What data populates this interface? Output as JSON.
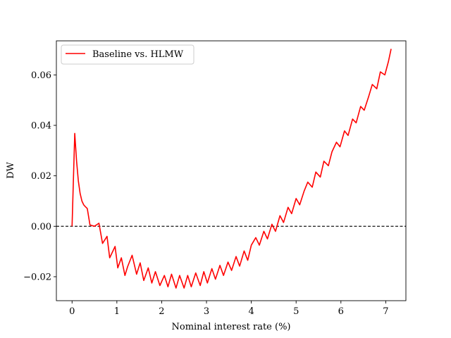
{
  "chart_data": {
    "type": "line",
    "title": "",
    "xlabel": "Nominal interest rate (%)",
    "ylabel": "DW",
    "xlim": [
      -0.35,
      7.45
    ],
    "ylim": [
      -0.0295,
      0.0735
    ],
    "xticks": [
      0,
      1,
      2,
      3,
      4,
      5,
      6,
      7
    ],
    "xtick_labels": [
      "0",
      "1",
      "2",
      "3",
      "4",
      "5",
      "6",
      "7"
    ],
    "yticks": [
      -0.02,
      0.0,
      0.02,
      0.04,
      0.06
    ],
    "ytick_labels": [
      "−0.02",
      "0.00",
      "0.02",
      "0.04",
      "0.06"
    ],
    "grid": false,
    "legend_position": "upper-left",
    "reference_line": {
      "y": 0.0,
      "style": "dashed",
      "color": "#000000"
    },
    "series": [
      {
        "name": "Baseline vs. HLMW",
        "color": "#ff0000",
        "x": [
          0.0,
          0.06,
          0.1,
          0.14,
          0.18,
          0.22,
          0.26,
          0.3,
          0.34,
          0.4,
          0.5,
          0.6,
          0.68,
          0.78,
          0.84,
          0.96,
          1.02,
          1.1,
          1.18,
          1.24,
          1.34,
          1.44,
          1.52,
          1.6,
          1.7,
          1.78,
          1.86,
          1.96,
          2.06,
          2.14,
          2.22,
          2.32,
          2.4,
          2.5,
          2.58,
          2.66,
          2.76,
          2.86,
          2.94,
          3.02,
          3.12,
          3.2,
          3.3,
          3.38,
          3.48,
          3.56,
          3.66,
          3.74,
          3.84,
          3.92,
          4.0,
          4.1,
          4.18,
          4.28,
          4.36,
          4.46,
          4.54,
          4.64,
          4.72,
          4.82,
          4.9,
          5.0,
          5.08,
          5.18,
          5.26,
          5.36,
          5.44,
          5.54,
          5.62,
          5.72,
          5.8,
          5.9,
          5.98,
          6.08,
          6.16,
          6.26,
          6.34,
          6.44,
          6.52,
          6.62,
          6.7,
          6.8,
          6.88,
          6.98,
          7.06,
          7.12
        ],
        "y": [
          0.0,
          0.0368,
          0.026,
          0.018,
          0.013,
          0.01,
          0.0085,
          0.0077,
          0.007,
          0.0005,
          0.0,
          0.0012,
          -0.0068,
          -0.004,
          -0.0125,
          -0.008,
          -0.0165,
          -0.0125,
          -0.0195,
          -0.016,
          -0.0115,
          -0.019,
          -0.0145,
          -0.0215,
          -0.0165,
          -0.0225,
          -0.018,
          -0.0235,
          -0.0195,
          -0.024,
          -0.019,
          -0.0245,
          -0.0195,
          -0.0245,
          -0.0195,
          -0.024,
          -0.0185,
          -0.0235,
          -0.018,
          -0.0225,
          -0.0168,
          -0.021,
          -0.0155,
          -0.0195,
          -0.0142,
          -0.0175,
          -0.012,
          -0.0158,
          -0.0098,
          -0.0135,
          -0.0075,
          -0.0045,
          -0.0075,
          -0.002,
          -0.005,
          0.0008,
          -0.002,
          0.0042,
          0.0015,
          0.0075,
          0.005,
          0.011,
          0.0085,
          0.014,
          0.0175,
          0.0155,
          0.0215,
          0.0195,
          0.0258,
          0.024,
          0.0295,
          0.0333,
          0.0315,
          0.0378,
          0.036,
          0.0425,
          0.041,
          0.0475,
          0.046,
          0.0515,
          0.0562,
          0.0545,
          0.0612,
          0.06,
          0.0653,
          0.0703
        ]
      }
    ]
  }
}
